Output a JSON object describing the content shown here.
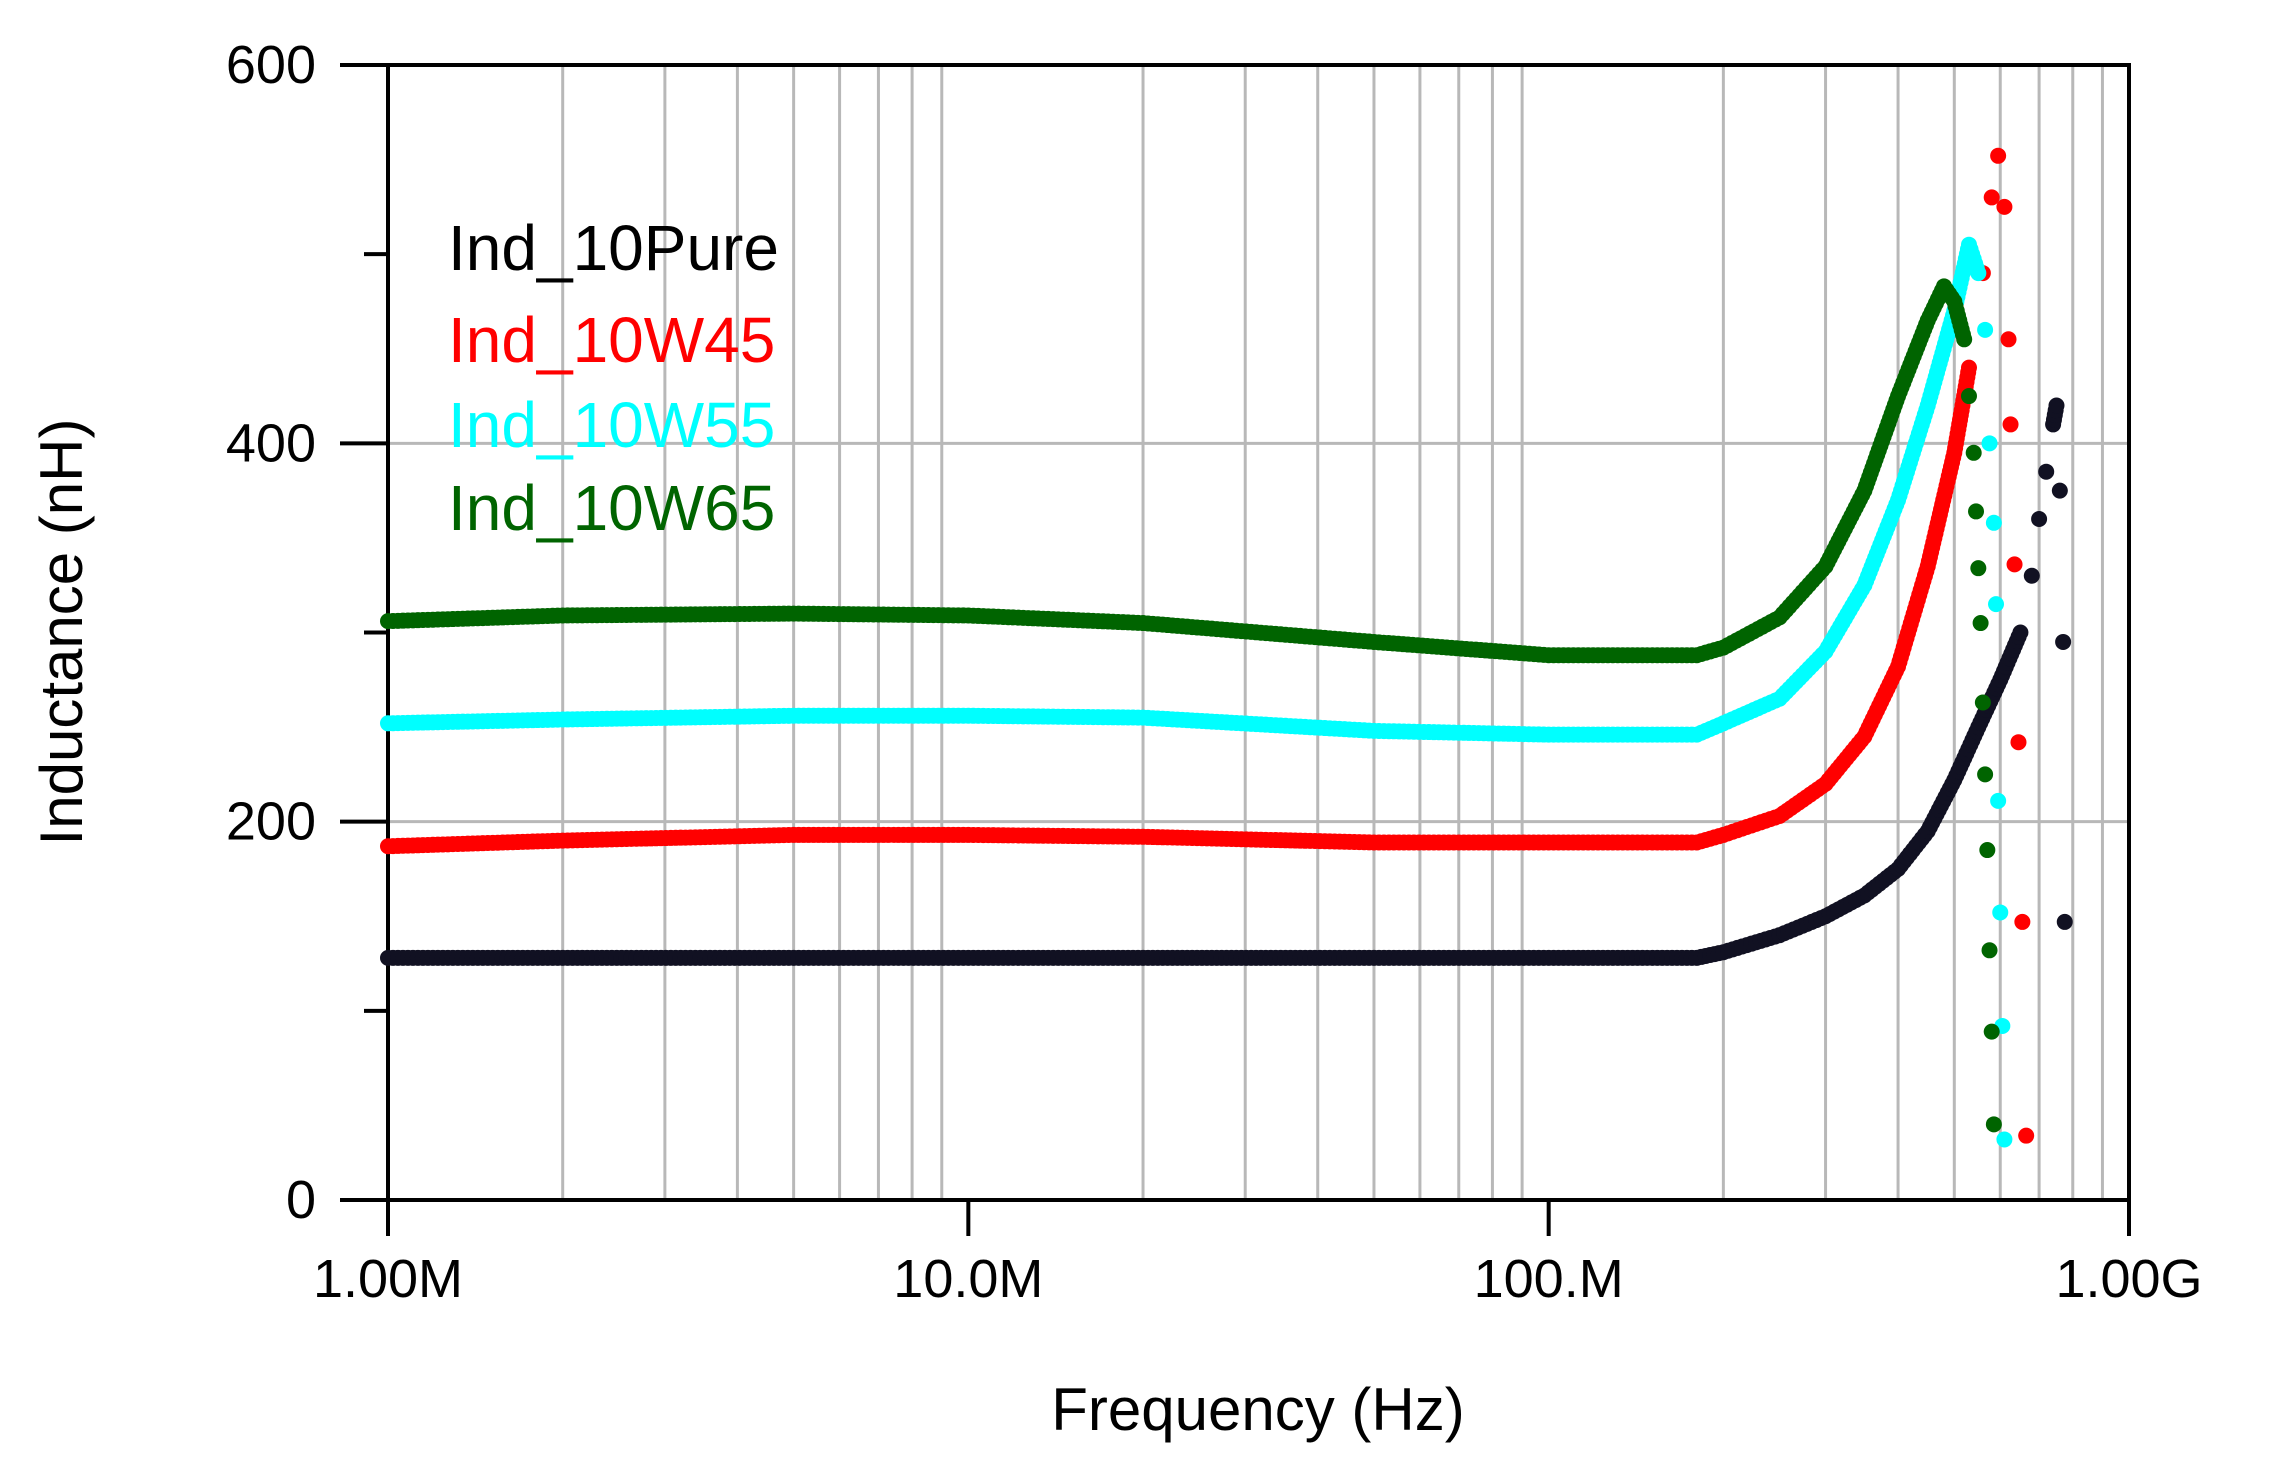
{
  "chart_data": {
    "type": "scatter",
    "title": "",
    "xlabel": "Frequency (Hz)",
    "ylabel": "Inductance (nH)",
    "xscale": "log",
    "xlim": [
      1000000,
      1000000000
    ],
    "ylim": [
      0,
      600
    ],
    "grid": true,
    "legend_position": "top-left",
    "x_ticks": [
      {
        "value": 1000000,
        "label": "1.00M"
      },
      {
        "value": 10000000,
        "label": "10.0M"
      },
      {
        "value": 100000000,
        "label": "100.M"
      },
      {
        "value": 1000000000,
        "label": "1.00G"
      }
    ],
    "y_ticks": [
      {
        "value": 0,
        "label": "0"
      },
      {
        "value": 200,
        "label": "200"
      },
      {
        "value": 400,
        "label": "400"
      },
      {
        "value": 600,
        "label": "600"
      }
    ],
    "series": [
      {
        "name": "Ind_10Pure",
        "color": "#111122",
        "points": [
          [
            1000000,
            128
          ],
          [
            2000000,
            128
          ],
          [
            5000000,
            128
          ],
          [
            10000000,
            128
          ],
          [
            20000000,
            128
          ],
          [
            50000000,
            128
          ],
          [
            100000000,
            128
          ],
          [
            180000000,
            128
          ],
          [
            200000000,
            131
          ],
          [
            250000000,
            140
          ],
          [
            300000000,
            150
          ],
          [
            350000000,
            161
          ],
          [
            400000000,
            175
          ],
          [
            450000000,
            195
          ],
          [
            500000000,
            222
          ],
          [
            550000000,
            250
          ],
          [
            600000000,
            275
          ],
          [
            650000000,
            300
          ],
          [
            680000000,
            330
          ],
          [
            700000000,
            360
          ],
          [
            720000000,
            385
          ],
          [
            740000000,
            410
          ],
          [
            750000000,
            420
          ],
          [
            760000000,
            375
          ],
          [
            770000000,
            295
          ],
          [
            775000000,
            147
          ]
        ]
      },
      {
        "name": "Ind_10W45",
        "color": "#ff0000",
        "points": [
          [
            1000000,
            187
          ],
          [
            2000000,
            190
          ],
          [
            5000000,
            193
          ],
          [
            10000000,
            193
          ],
          [
            20000000,
            192
          ],
          [
            50000000,
            189
          ],
          [
            100000000,
            189
          ],
          [
            180000000,
            189
          ],
          [
            200000000,
            193
          ],
          [
            250000000,
            203
          ],
          [
            300000000,
            220
          ],
          [
            350000000,
            245
          ],
          [
            400000000,
            282
          ],
          [
            450000000,
            335
          ],
          [
            500000000,
            395
          ],
          [
            530000000,
            440
          ],
          [
            560000000,
            490
          ],
          [
            580000000,
            530
          ],
          [
            595000000,
            552
          ],
          [
            610000000,
            525
          ],
          [
            620000000,
            455
          ],
          [
            625000000,
            410
          ],
          [
            635000000,
            336
          ],
          [
            645000000,
            242
          ],
          [
            655000000,
            147
          ],
          [
            665000000,
            34
          ]
        ]
      },
      {
        "name": "Ind_10W55",
        "color": "#00ffff",
        "points": [
          [
            1000000,
            252
          ],
          [
            2000000,
            254
          ],
          [
            5000000,
            256
          ],
          [
            10000000,
            256
          ],
          [
            20000000,
            255
          ],
          [
            50000000,
            248
          ],
          [
            100000000,
            246
          ],
          [
            180000000,
            246
          ],
          [
            200000000,
            252
          ],
          [
            250000000,
            265
          ],
          [
            300000000,
            290
          ],
          [
            350000000,
            325
          ],
          [
            400000000,
            370
          ],
          [
            450000000,
            420
          ],
          [
            500000000,
            470
          ],
          [
            530000000,
            505
          ],
          [
            550000000,
            490
          ],
          [
            565000000,
            460
          ],
          [
            575000000,
            400
          ],
          [
            585000000,
            358
          ],
          [
            590000000,
            315
          ],
          [
            595000000,
            211
          ],
          [
            600000000,
            152
          ],
          [
            605000000,
            92
          ],
          [
            610000000,
            32
          ]
        ]
      },
      {
        "name": "Ind_10W65",
        "color": "#006400",
        "points": [
          [
            1000000,
            306
          ],
          [
            2000000,
            309
          ],
          [
            5000000,
            310
          ],
          [
            10000000,
            309
          ],
          [
            20000000,
            305
          ],
          [
            50000000,
            295
          ],
          [
            100000000,
            288
          ],
          [
            180000000,
            288
          ],
          [
            200000000,
            292
          ],
          [
            250000000,
            308
          ],
          [
            300000000,
            335
          ],
          [
            350000000,
            375
          ],
          [
            400000000,
            425
          ],
          [
            450000000,
            465
          ],
          [
            480000000,
            483
          ],
          [
            500000000,
            475
          ],
          [
            520000000,
            455
          ],
          [
            530000000,
            425
          ],
          [
            540000000,
            395
          ],
          [
            545000000,
            364
          ],
          [
            550000000,
            334
          ],
          [
            555000000,
            305
          ],
          [
            560000000,
            263
          ],
          [
            565000000,
            225
          ],
          [
            570000000,
            185
          ],
          [
            575000000,
            132
          ],
          [
            580000000,
            89
          ],
          [
            585000000,
            40
          ]
        ]
      }
    ]
  }
}
